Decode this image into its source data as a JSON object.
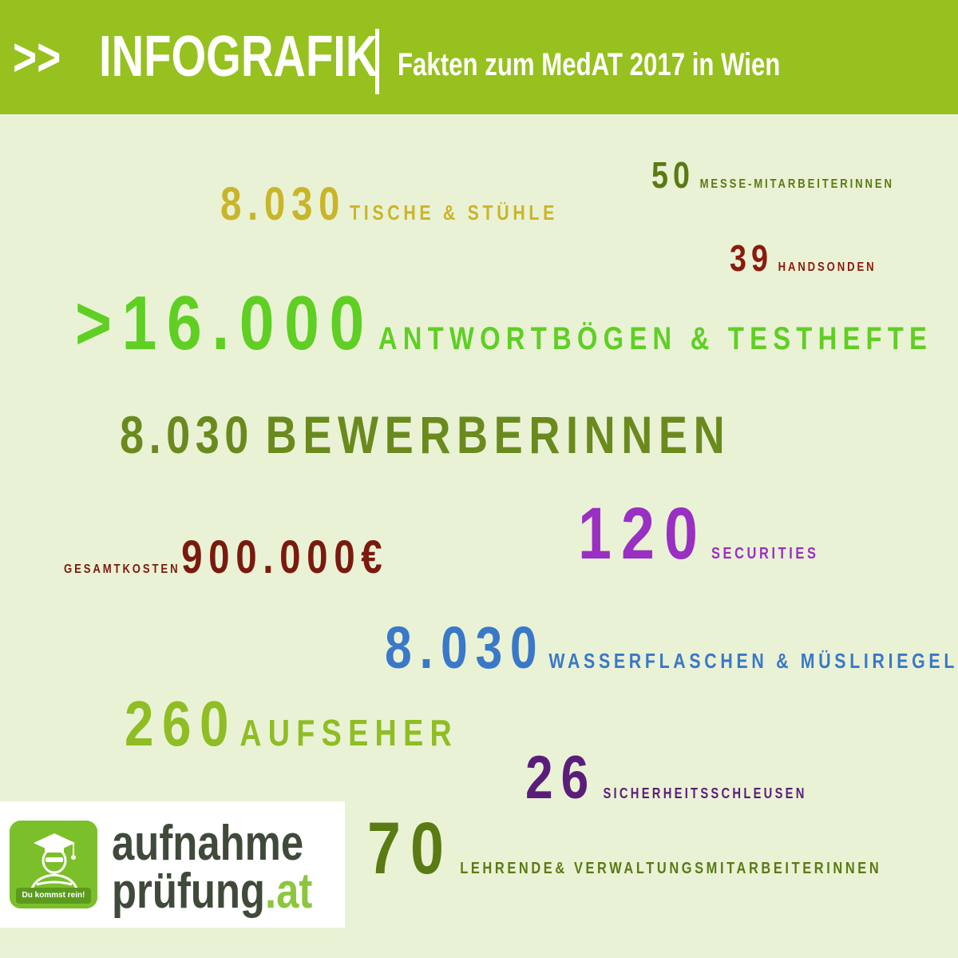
{
  "header": {
    "prefix": ">>",
    "title": "INFOGRAFIK",
    "subtitle": "Fakten zum MedAT 2017 in Wien"
  },
  "facts": [
    {
      "id": "messe",
      "value": "50",
      "label": "MESSE-MITARBEITERINNEN",
      "color": "#5a7a14"
    },
    {
      "id": "tische",
      "value": "8.030",
      "label": "TISCHE & STÜHLE",
      "color": "#c9b52a"
    },
    {
      "id": "handsonden",
      "value": "39",
      "label": "HANDSONDEN",
      "color": "#8b1a0e"
    },
    {
      "id": "antwortboegen",
      "value": ">16.000",
      "label": "ANTWORTBÖGEN & TESTHEFTE",
      "color": "#5fcf24"
    },
    {
      "id": "bewerberinnen",
      "value": "8.030",
      "label": "BEWERBERINNEN",
      "color": "#6a8a1e"
    },
    {
      "id": "securities",
      "value": "120",
      "label": "SECURITIES",
      "color": "#9a2fc4"
    },
    {
      "id": "gesamtkosten",
      "value": "900.000€",
      "label": "GESAMTKOSTEN",
      "color": "#7a1a0e"
    },
    {
      "id": "wasserflaschen",
      "value": "8.030",
      "label": "WASSERFLASCHEN & MÜSLIRIEGEL",
      "color": "#3a78c8"
    },
    {
      "id": "aufseher",
      "value": "260",
      "label": "AUFSEHER",
      "color": "#8fbd24"
    },
    {
      "id": "sicherheitsschleusen",
      "value": "26",
      "label": "SICHERHEITSSCHLEUSEN",
      "color": "#5a1e7a"
    },
    {
      "id": "lehrende",
      "value": "70",
      "label": "LEHRENDE& VERWALTUNGSMITARBEITERINNEN",
      "color": "#5a7a14"
    }
  ],
  "logo": {
    "word1": "aufnahme",
    "word2": "prüfung",
    "tld": ".at",
    "tagline": "Du kommst rein!",
    "icon": "graduate-mascot-icon",
    "icon_color": "#7bbf2a"
  }
}
